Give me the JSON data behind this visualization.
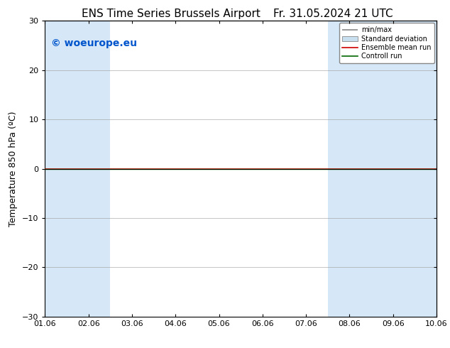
{
  "title_left": "ENS Time Series Brussels Airport",
  "title_right": "Fr. 31.05.2024 21 UTC",
  "ylabel": "Temperature 850 hPa (ºC)",
  "xlim_start": 0,
  "xlim_end": 9,
  "ylim": [
    -30,
    30
  ],
  "yticks": [
    -30,
    -20,
    -10,
    0,
    10,
    20,
    30
  ],
  "xtick_labels": [
    "01.06",
    "02.06",
    "03.06",
    "04.06",
    "05.06",
    "06.06",
    "07.06",
    "08.06",
    "09.06",
    "10.06"
  ],
  "watermark": "© woeurope.eu",
  "watermark_color": "#0055cc",
  "bg_color": "#ffffff",
  "plot_bg_color": "#ffffff",
  "shaded_color": "#d6e8f7",
  "line_color_ensemble": "#cc0000",
  "line_color_control": "#006600",
  "legend_items": [
    {
      "label": "min/max"
    },
    {
      "label": "Standard deviation"
    },
    {
      "label": "Ensemble mean run"
    },
    {
      "label": "Controll run"
    }
  ],
  "title_fontsize": 11,
  "watermark_fontsize": 10,
  "ylabel_fontsize": 9,
  "tick_fontsize": 8,
  "shaded_bands": [
    [
      0,
      1
    ],
    [
      2,
      3
    ],
    [
      7,
      8
    ],
    [
      9,
      9
    ]
  ],
  "n_days": 10
}
